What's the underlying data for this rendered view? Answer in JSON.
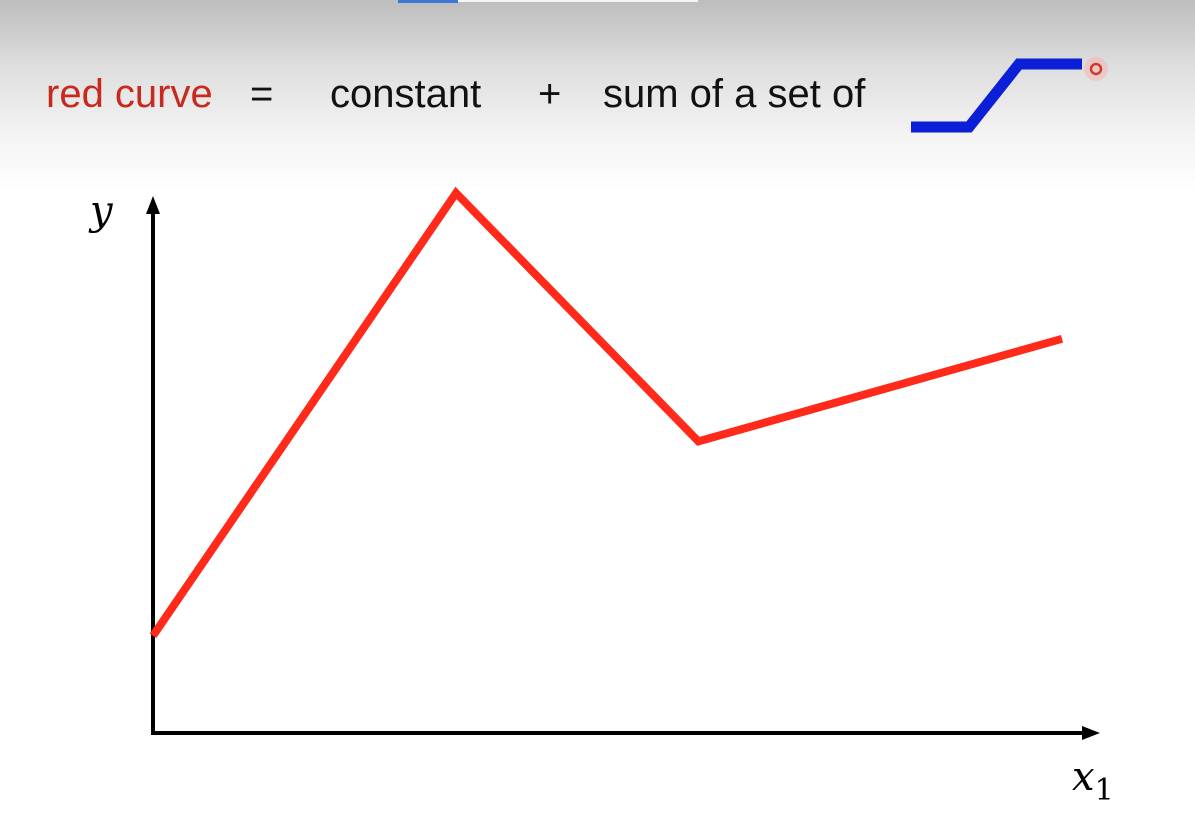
{
  "equation": {
    "lhs": "red curve",
    "equals": "=",
    "constant": "constant",
    "plus": "+",
    "sum_text": "sum of a set of"
  },
  "colors": {
    "red_curve": "#ff2a1a",
    "lhs_text": "#c8291c",
    "blue_function": "#0a1fd6",
    "axis": "#000000"
  },
  "icons": {
    "blue_function_icon": "hard-sigmoid-step-icon"
  },
  "chart_data": {
    "type": "line",
    "xlabel": "x",
    "xlabel_subscript": "1",
    "ylabel": "y",
    "series": [
      {
        "points": [
          [
            0,
            1.8
          ],
          [
            3.0,
            10.0
          ],
          [
            5.4,
            5.4
          ],
          [
            9.0,
            7.3
          ]
        ]
      }
    ],
    "xlim": [
      0,
      9.4
    ],
    "ylim": [
      0,
      10.2
    ],
    "grid": false
  }
}
